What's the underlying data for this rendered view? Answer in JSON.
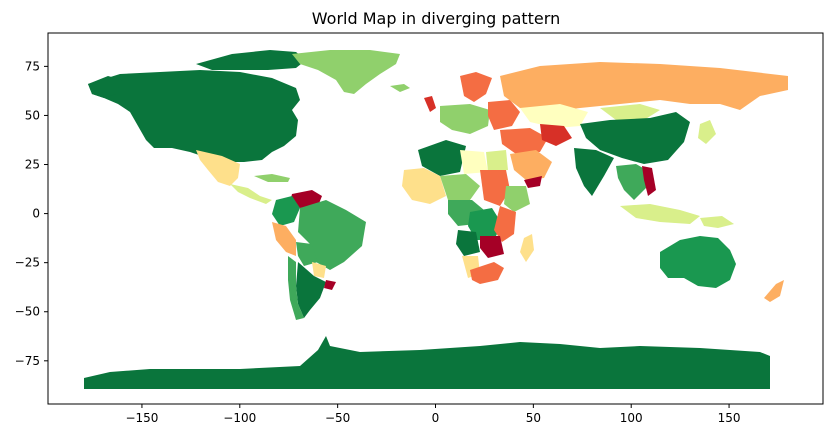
{
  "chart_data": {
    "type": "choropleth",
    "title": "World Map in diverging pattern",
    "xlabel": "",
    "ylabel": "",
    "xlim": [
      -198,
      198
    ],
    "ylim": [
      -97,
      92
    ],
    "x_ticks": [
      -150,
      -100,
      -50,
      0,
      50,
      100,
      150
    ],
    "y_ticks": [
      75,
      50,
      25,
      0,
      -25,
      -50,
      -75
    ],
    "x_tick_labels": [
      "−150",
      "−100",
      "−50",
      "0",
      "50",
      "100",
      "150"
    ],
    "y_tick_labels": [
      "75",
      "50",
      "25",
      "0",
      "−25",
      "−50",
      "−75"
    ],
    "colormap": "RdYlGn",
    "palette": {
      "dark_green": "#0a753c",
      "green": "#1a9850",
      "medium_green": "#3fa95a",
      "light_green": "#90d06c",
      "pale_green": "#d9ef8b",
      "pale_yellow": "#ffffbf",
      "yellow": "#fee08b",
      "orange": "#fdae61",
      "orange_red": "#f46d43",
      "red": "#d73027",
      "dark_red": "#a50026"
    },
    "regions": [
      {
        "id": "antarctica",
        "color": "#0a753c"
      },
      {
        "id": "north-america",
        "color": "#0a753c"
      },
      {
        "id": "alaska",
        "color": "#0a753c"
      },
      {
        "id": "canadian-arctic-islands",
        "color": "#0a753c"
      },
      {
        "id": "greenland",
        "color": "#90d06c"
      },
      {
        "id": "iceland",
        "color": "#90d06c"
      },
      {
        "id": "mexico",
        "color": "#fee08b"
      },
      {
        "id": "central-america",
        "color": "#d9ef8b"
      },
      {
        "id": "caribbean",
        "color": "#90d06c"
      },
      {
        "id": "venezuela",
        "color": "#a50026"
      },
      {
        "id": "colombia",
        "color": "#1a9850"
      },
      {
        "id": "brazil",
        "color": "#3fa95a"
      },
      {
        "id": "peru",
        "color": "#fdae61"
      },
      {
        "id": "bolivia",
        "color": "#3fa95a"
      },
      {
        "id": "argentina",
        "color": "#0a753c"
      },
      {
        "id": "chile",
        "color": "#3fa95a"
      },
      {
        "id": "paraguay",
        "color": "#fee08b"
      },
      {
        "id": "uruguay",
        "color": "#a50026"
      },
      {
        "id": "western-europe",
        "color": "#90d06c"
      },
      {
        "id": "scandinavia",
        "color": "#f46d43"
      },
      {
        "id": "uk",
        "color": "#d73027"
      },
      {
        "id": "eastern-europe",
        "color": "#f46d43"
      },
      {
        "id": "russia",
        "color": "#fdae61"
      },
      {
        "id": "kazakhstan",
        "color": "#ffffbf"
      },
      {
        "id": "mongolia",
        "color": "#d9ef8b"
      },
      {
        "id": "china",
        "color": "#0a753c"
      },
      {
        "id": "india",
        "color": "#0a753c"
      },
      {
        "id": "middle-east",
        "color": "#f46d43"
      },
      {
        "id": "central-asia",
        "color": "#d73027"
      },
      {
        "id": "arabia",
        "color": "#fdae61"
      },
      {
        "id": "yemen",
        "color": "#a50026"
      },
      {
        "id": "southeast-asia",
        "color": "#3fa95a"
      },
      {
        "id": "vietnam",
        "color": "#a50026"
      },
      {
        "id": "indonesia",
        "color": "#d9ef8b"
      },
      {
        "id": "japan",
        "color": "#d9ef8b"
      },
      {
        "id": "north-africa-west",
        "color": "#0a753c"
      },
      {
        "id": "libya",
        "color": "#ffffbf"
      },
      {
        "id": "egypt",
        "color": "#d9ef8b"
      },
      {
        "id": "west-africa",
        "color": "#fee08b"
      },
      {
        "id": "sahel",
        "color": "#90d06c"
      },
      {
        "id": "sudan",
        "color": "#f46d43"
      },
      {
        "id": "ethiopia",
        "color": "#90d06c"
      },
      {
        "id": "central-africa",
        "color": "#3fa95a"
      },
      {
        "id": "congo",
        "color": "#1a9850"
      },
      {
        "id": "east-africa",
        "color": "#f46d43"
      },
      {
        "id": "angola",
        "color": "#0a753c"
      },
      {
        "id": "zambia",
        "color": "#a50026"
      },
      {
        "id": "namibia",
        "color": "#fee08b"
      },
      {
        "id": "south-africa",
        "color": "#f46d43"
      },
      {
        "id": "madagascar",
        "color": "#fee08b"
      },
      {
        "id": "australia",
        "color": "#1a9850"
      },
      {
        "id": "papua",
        "color": "#d9ef8b"
      },
      {
        "id": "new-zealand",
        "color": "#fdae61"
      }
    ]
  }
}
